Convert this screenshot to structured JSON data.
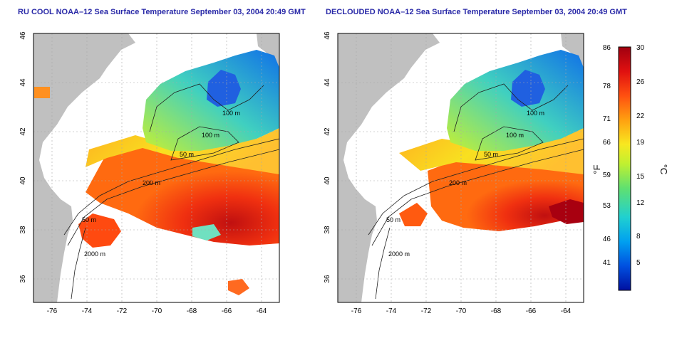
{
  "maps": [
    {
      "title": "RU COOL NOAA–12 Sea Surface Temperature September 03, 2004 20:49 GMT",
      "lat_ticks": [
        "46",
        "44",
        "42",
        "40",
        "38",
        "36"
      ],
      "lon_ticks": [
        "-76",
        "-74",
        "-72",
        "-70",
        "-68",
        "-66",
        "-64"
      ],
      "contour_labels": [
        "100 m",
        "100 m",
        "50 m",
        "200 m",
        "50 m",
        "2000 m"
      ]
    },
    {
      "title": "DECLOUDED NOAA–12 Sea Surface Temperature September 03, 2004 20:49 GMT",
      "lat_ticks": [
        "46",
        "44",
        "42",
        "40",
        "38",
        "36"
      ],
      "lon_ticks": [
        "-76",
        "-74",
        "-72",
        "-70",
        "-68",
        "-66",
        "-64"
      ],
      "contour_labels": [
        "100 m",
        "100 m",
        "50 m",
        "200 m",
        "50 m",
        "2000 m"
      ]
    }
  ],
  "colorbar": {
    "f_unit": "°F",
    "c_unit": "°C",
    "f_ticks": [
      "86",
      "78",
      "71",
      "66",
      "59",
      "53",
      "46",
      "41"
    ],
    "c_ticks": [
      "30",
      "26",
      "22",
      "19",
      "15",
      "12",
      "8",
      "5"
    ],
    "gradient": [
      "#0010a0",
      "#0050e0",
      "#00a0f0",
      "#20d0d0",
      "#60e070",
      "#c0f030",
      "#f8e820",
      "#ffa010",
      "#ff5010",
      "#e01010",
      "#a00010"
    ]
  },
  "colors": {
    "land": "#c0c0c0",
    "ocean_missing": "#ffffff",
    "title": "#2a2aa8",
    "grid": "#b0b0b0"
  }
}
